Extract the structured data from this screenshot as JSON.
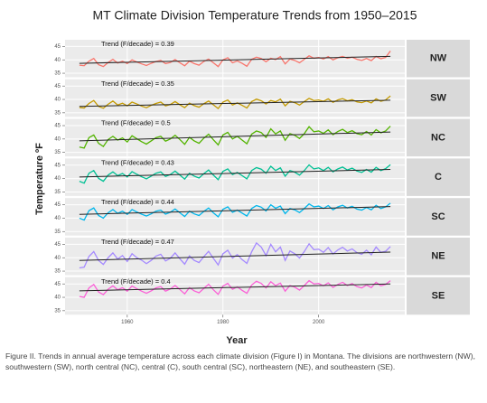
{
  "chart_data": {
    "type": "line",
    "title": "MT Climate Division Temperature Trends from 1950–2015",
    "x_label": "Year",
    "y_label": "Temperature ºF",
    "x": [
      1950,
      1951,
      1952,
      1953,
      1954,
      1955,
      1956,
      1957,
      1958,
      1959,
      1960,
      1961,
      1962,
      1963,
      1964,
      1965,
      1966,
      1967,
      1968,
      1969,
      1970,
      1971,
      1972,
      1973,
      1974,
      1975,
      1976,
      1977,
      1978,
      1979,
      1980,
      1981,
      1982,
      1983,
      1984,
      1985,
      1986,
      1987,
      1988,
      1989,
      1990,
      1991,
      1992,
      1993,
      1994,
      1995,
      1996,
      1997,
      1998,
      1999,
      2000,
      2001,
      2002,
      2003,
      2004,
      2005,
      2006,
      2007,
      2008,
      2009,
      2010,
      2011,
      2012,
      2013,
      2014,
      2015
    ],
    "xlim": [
      1947,
      2018
    ],
    "xticks": [
      1960,
      1980,
      2000
    ],
    "ylim": [
      33.5,
      47.5
    ],
    "yticks": [
      35,
      40,
      45
    ],
    "grid": true,
    "trend_color": "#222222",
    "series": [
      {
        "name": "NW",
        "color": "#f8766d",
        "trend_label": "Trend (F/decade) = 0.39",
        "trend_values": [
          38.7,
          41.3
        ],
        "values": [
          38.0,
          37.8,
          39.5,
          40.5,
          38.2,
          37.5,
          39.0,
          40.2,
          38.8,
          39.5,
          38.6,
          40.0,
          39.2,
          38.5,
          37.9,
          38.7,
          39.4,
          39.8,
          38.6,
          39.0,
          40.1,
          38.9,
          37.8,
          39.5,
          38.6,
          38.0,
          39.4,
          40.3,
          38.9,
          37.5,
          40.0,
          40.8,
          38.9,
          39.6,
          38.7,
          37.6,
          40.2,
          41.0,
          40.5,
          39.3,
          40.6,
          40.1,
          41.2,
          38.5,
          40.3,
          39.8,
          38.9,
          40.2,
          41.5,
          40.6,
          40.9,
          40.3,
          41.2,
          40.0,
          40.8,
          41.3,
          40.6,
          41.0,
          40.2,
          39.8,
          40.5,
          39.7,
          41.3,
          40.4,
          40.9,
          43.3
        ]
      },
      {
        "name": "SW",
        "color": "#c49a00",
        "trend_label": "Trend (F/decade) = 0.35",
        "trend_values": [
          37.4,
          39.7
        ],
        "values": [
          37.0,
          36.8,
          38.5,
          39.6,
          37.4,
          36.7,
          38.2,
          39.4,
          37.9,
          38.6,
          37.6,
          39.0,
          38.3,
          37.5,
          36.9,
          37.8,
          38.5,
          39.0,
          37.6,
          38.1,
          39.2,
          38.0,
          36.9,
          38.6,
          37.7,
          37.1,
          38.4,
          39.4,
          38.0,
          36.6,
          39.0,
          39.8,
          37.9,
          38.7,
          37.8,
          36.8,
          39.2,
          40.1,
          39.5,
          38.3,
          39.6,
          39.1,
          40.1,
          37.6,
          39.3,
          38.8,
          37.9,
          39.2,
          40.4,
          39.6,
          39.8,
          39.3,
          40.2,
          38.9,
          39.8,
          40.3,
          39.5,
          39.9,
          39.1,
          38.8,
          39.4,
          38.7,
          40.2,
          39.3,
          39.8,
          41.3
        ]
      },
      {
        "name": "NC",
        "color": "#53b400",
        "trend_label": "Trend (F/decade) = 0.5",
        "trend_values": [
          39.3,
          42.6
        ],
        "values": [
          37.0,
          36.6,
          40.5,
          41.5,
          38.4,
          37.2,
          39.8,
          41.0,
          39.6,
          40.4,
          38.9,
          41.2,
          40.1,
          39.0,
          38.1,
          39.3,
          40.5,
          41.0,
          39.2,
          40.0,
          41.4,
          39.8,
          38.0,
          40.6,
          39.3,
          38.4,
          40.3,
          41.8,
          39.7,
          37.8,
          41.5,
          42.5,
          40.0,
          41.0,
          39.6,
          38.2,
          41.8,
          43.0,
          42.4,
          40.6,
          43.8,
          41.9,
          43.0,
          39.5,
          42.0,
          41.4,
          40.2,
          42.0,
          44.6,
          42.7,
          43.0,
          42.1,
          43.4,
          41.6,
          42.8,
          43.6,
          42.4,
          43.1,
          42.0,
          41.6,
          42.8,
          41.5,
          43.5,
          42.3,
          43.0,
          44.8
        ]
      },
      {
        "name": "C",
        "color": "#00c094",
        "trend_label": "Trend (F/decade) = 0.43",
        "trend_values": [
          40.6,
          43.4
        ],
        "values": [
          39.0,
          38.3,
          42.0,
          43.0,
          40.1,
          39.0,
          41.3,
          42.5,
          41.1,
          41.9,
          40.6,
          42.6,
          41.6,
          40.7,
          39.9,
          40.9,
          42.0,
          42.5,
          40.8,
          41.5,
          42.8,
          41.3,
          39.8,
          42.0,
          40.9,
          40.2,
          41.8,
          43.2,
          41.3,
          39.6,
          42.7,
          43.6,
          41.5,
          42.3,
          41.1,
          39.9,
          43.0,
          44.1,
          43.5,
          42.0,
          44.6,
          43.0,
          44.0,
          40.9,
          43.0,
          42.4,
          41.3,
          43.0,
          45.1,
          43.6,
          44.0,
          43.0,
          44.2,
          42.5,
          43.6,
          44.3,
          43.2,
          43.9,
          42.8,
          42.3,
          43.4,
          42.4,
          44.2,
          43.0,
          43.7,
          45.2
        ]
      },
      {
        "name": "SC",
        "color": "#00b6eb",
        "trend_label": "Trend (F/decade) = 0.44",
        "trend_values": [
          41.4,
          44.3
        ],
        "values": [
          40.0,
          39.3,
          42.8,
          43.8,
          41.0,
          40.0,
          42.0,
          43.2,
          41.8,
          42.6,
          41.4,
          43.2,
          42.3,
          41.5,
          40.8,
          41.6,
          42.6,
          43.0,
          41.5,
          42.2,
          43.4,
          42.0,
          40.6,
          42.6,
          41.6,
          41.0,
          42.5,
          43.8,
          42.0,
          40.5,
          43.3,
          44.2,
          42.2,
          43.0,
          41.9,
          40.8,
          43.6,
          44.7,
          44.1,
          42.7,
          45.0,
          43.7,
          44.5,
          41.7,
          43.6,
          43.1,
          42.1,
          43.6,
          45.3,
          44.2,
          44.5,
          43.6,
          44.7,
          43.1,
          44.2,
          44.8,
          43.8,
          44.4,
          43.4,
          43.0,
          44.0,
          43.1,
          44.8,
          43.6,
          44.2,
          45.6
        ]
      },
      {
        "name": "NE",
        "color": "#a58aff",
        "trend_label": "Trend (F/decade) = 0.47",
        "trend_values": [
          39.0,
          42.1
        ],
        "values": [
          36.2,
          36.5,
          40.5,
          42.3,
          39.0,
          37.5,
          40.0,
          41.8,
          39.5,
          40.8,
          38.6,
          41.5,
          40.0,
          39.1,
          37.8,
          39.0,
          40.6,
          41.3,
          38.8,
          39.8,
          41.8,
          39.6,
          37.6,
          40.7,
          39.0,
          38.2,
          40.4,
          42.4,
          39.8,
          37.3,
          41.5,
          42.8,
          39.9,
          41.2,
          39.3,
          37.9,
          42.2,
          45.5,
          44.0,
          40.8,
          45.0,
          42.2,
          44.0,
          39.0,
          42.5,
          41.5,
          39.9,
          42.3,
          45.2,
          43.0,
          43.2,
          42.0,
          43.8,
          41.4,
          42.9,
          43.9,
          42.5,
          43.3,
          41.9,
          41.3,
          42.8,
          41.1,
          44.0,
          42.0,
          42.4,
          44.2
        ]
      },
      {
        "name": "SE",
        "color": "#fb61d7",
        "trend_label": "Trend (F/decade) = 0.4",
        "trend_values": [
          42.4,
          45.0
        ],
        "values": [
          40.3,
          40.0,
          43.5,
          44.8,
          42.0,
          41.0,
          43.0,
          44.3,
          42.8,
          43.6,
          42.3,
          44.2,
          43.2,
          42.3,
          41.5,
          42.4,
          43.5,
          44.0,
          42.3,
          43.1,
          44.4,
          42.9,
          41.3,
          43.6,
          42.4,
          41.7,
          43.3,
          44.9,
          42.8,
          41.1,
          44.2,
          45.2,
          43.0,
          43.9,
          42.6,
          41.5,
          44.6,
          46.0,
          45.2,
          43.5,
          45.8,
          44.4,
          45.3,
          42.3,
          44.4,
          43.8,
          42.7,
          44.4,
          46.2,
          45.0,
          45.2,
          44.3,
          45.4,
          43.7,
          44.8,
          45.6,
          44.4,
          45.1,
          44.0,
          43.5,
          44.6,
          43.6,
          45.6,
          44.3,
          44.8,
          46.2
        ]
      }
    ]
  },
  "caption": "Figure II. Trends in annual average temperature across each climate division (Figure I) in Montana. The divisions are northwestern (NW), southwestern (SW), north central (NC), central (C), south central (SC), northeastern (NE), and southeastern (SE)."
}
